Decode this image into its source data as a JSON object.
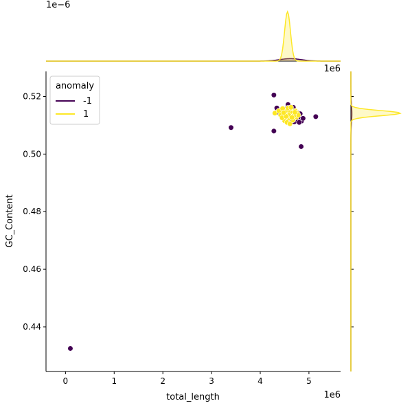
{
  "chart_data": {
    "type": "scatter",
    "xlabel": "total_length",
    "ylabel": "GC_Content",
    "x_offset_label": "1e6",
    "y_offset_label": "",
    "top_marginal_offset_label": "1e−6",
    "right_marginal_offset_label": "1e6",
    "xlim": [
      -400000,
      5650000
    ],
    "ylim": [
      0.4245,
      0.5287
    ],
    "x_ticks": [
      0,
      1000000,
      2000000,
      3000000,
      4000000,
      5000000
    ],
    "x_tick_labels": [
      "0",
      "1",
      "2",
      "3",
      "4",
      "5"
    ],
    "y_ticks": [
      0.44,
      0.46,
      0.48,
      0.5,
      0.52
    ],
    "y_tick_labels": [
      "0.44",
      "0.46",
      "0.48",
      "0.50",
      "0.52"
    ],
    "grid": false,
    "legend": {
      "title": "anomaly",
      "placement": "top-left",
      "entries": [
        {
          "label": "-1",
          "color": "#440154"
        },
        {
          "label": "1",
          "color": "#fde725"
        }
      ]
    },
    "series": [
      {
        "name": "-1",
        "color": "#440154",
        "points": [
          [
            100000,
            0.4325
          ],
          [
            3400000,
            0.5092
          ],
          [
            4280000,
            0.508
          ],
          [
            4280000,
            0.5205
          ],
          [
            4840000,
            0.5026
          ],
          [
            5140000,
            0.513
          ],
          [
            4340000,
            0.516
          ],
          [
            4570000,
            0.5172
          ],
          [
            4440000,
            0.515
          ],
          [
            4780000,
            0.5128
          ],
          [
            4850000,
            0.5115
          ],
          [
            4700000,
            0.5112
          ],
          [
            4520000,
            0.512
          ],
          [
            4620000,
            0.5155
          ],
          [
            4480000,
            0.5138
          ],
          [
            4750000,
            0.5145
          ],
          [
            4600000,
            0.5108
          ],
          [
            4880000,
            0.5124
          ],
          [
            4400000,
            0.5142
          ],
          [
            4680000,
            0.5162
          ],
          [
            4820000,
            0.514
          ],
          [
            4560000,
            0.5133
          ],
          [
            4730000,
            0.512
          ],
          [
            4510000,
            0.5156
          ],
          [
            4650000,
            0.5118
          ],
          [
            4800000,
            0.511
          ]
        ]
      },
      {
        "name": "1",
        "color": "#fde725",
        "points": [
          [
            4300000,
            0.5142
          ],
          [
            4380000,
            0.515
          ],
          [
            4420000,
            0.5135
          ],
          [
            4460000,
            0.5158
          ],
          [
            4490000,
            0.5128
          ],
          [
            4520000,
            0.5145
          ],
          [
            4540000,
            0.5138
          ],
          [
            4560000,
            0.5152
          ],
          [
            4580000,
            0.5125
          ],
          [
            4600000,
            0.514
          ],
          [
            4620000,
            0.5148
          ],
          [
            4640000,
            0.5132
          ],
          [
            4660000,
            0.5143
          ],
          [
            4680000,
            0.5121
          ],
          [
            4700000,
            0.5137
          ],
          [
            4720000,
            0.515
          ],
          [
            4740000,
            0.5128
          ],
          [
            4760000,
            0.5141
          ],
          [
            4780000,
            0.5135
          ],
          [
            4500000,
            0.5116
          ],
          [
            4550000,
            0.511
          ],
          [
            4610000,
            0.5105
          ],
          [
            4670000,
            0.5118
          ],
          [
            4450000,
            0.5126
          ],
          [
            4570000,
            0.516
          ],
          [
            4630000,
            0.5162
          ],
          [
            4690000,
            0.5133
          ],
          [
            4590000,
            0.5134
          ],
          [
            4530000,
            0.5131
          ],
          [
            4650000,
            0.5127
          ],
          [
            4710000,
            0.5145
          ],
          [
            4480000,
            0.5144
          ]
        ]
      }
    ],
    "marginal_x": {
      "placement": "top",
      "series": [
        {
          "name": "-1",
          "color": "#440154",
          "peak_x": 4620000,
          "peak_density": 0.05,
          "width": 220000
        },
        {
          "name": "1",
          "color": "#fde725",
          "peak_x": 4560000,
          "peak_density": 1.0,
          "width": 60000
        }
      ]
    },
    "marginal_y": {
      "placement": "right",
      "series": [
        {
          "name": "-1",
          "color": "#440154",
          "peak_y": 0.514,
          "peak_density": 0.02,
          "width": 0.003
        },
        {
          "name": "1",
          "color": "#fde725",
          "peak_y": 0.5142,
          "peak_density": 1.0,
          "width": 0.0009
        }
      ]
    }
  }
}
